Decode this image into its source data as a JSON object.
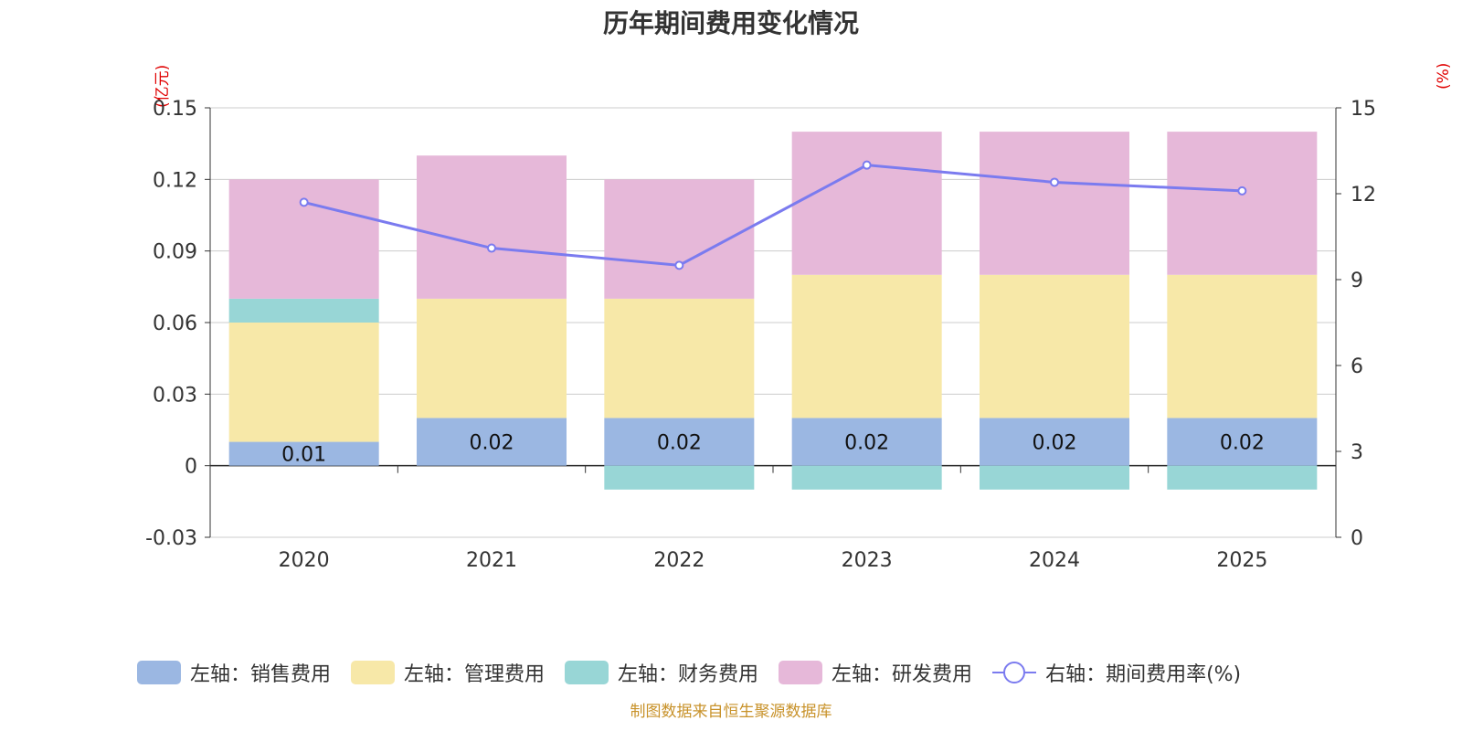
{
  "title": "历年期间费用变化情况",
  "colors": {
    "sales": "#9bb7e2",
    "admin": "#f7e8a8",
    "finance": "#98d6d6",
    "rnd": "#e6b8d9",
    "rate": "#7b7bef",
    "unit": "#e00000",
    "footer": "#c8922a"
  },
  "chart_data": {
    "type": "bar",
    "stacked": true,
    "title": "历年期间费用变化情况",
    "categories": [
      "2020",
      "2021",
      "2022",
      "2023",
      "2024",
      "2025"
    ],
    "series": [
      {
        "name": "左轴：销售费用",
        "axis": "left",
        "values": [
          0.01,
          0.02,
          0.02,
          0.02,
          0.02,
          0.02
        ],
        "labels": [
          "0.01",
          "0.02",
          "0.02",
          "0.02",
          "0.02",
          "0.02"
        ]
      },
      {
        "name": "左轴：管理费用",
        "axis": "left",
        "values": [
          0.05,
          0.05,
          0.05,
          0.06,
          0.06,
          0.06
        ]
      },
      {
        "name": "左轴：财务费用",
        "axis": "left",
        "values": [
          0.01,
          0.0,
          -0.01,
          -0.01,
          -0.01,
          -0.01
        ]
      },
      {
        "name": "左轴：研发费用",
        "axis": "left",
        "values": [
          0.05,
          0.06,
          0.05,
          0.06,
          0.06,
          0.06
        ]
      },
      {
        "name": "右轴：期间费用率(%)",
        "axis": "right",
        "type": "line",
        "values": [
          11.7,
          10.1,
          9.5,
          13.0,
          12.4,
          12.1
        ]
      }
    ],
    "y_left": {
      "unit": "(亿元)",
      "range": [
        -0.03,
        0.15
      ],
      "ticks": [
        "-0.03",
        "0",
        "0.03",
        "0.06",
        "0.09",
        "0.12",
        "0.15"
      ]
    },
    "y_right": {
      "unit": "(%)",
      "range": [
        0,
        15
      ],
      "ticks": [
        "0",
        "3",
        "6",
        "9",
        "12",
        "15"
      ]
    },
    "legend_position": "bottom",
    "grid": true
  },
  "footer": "制图数据来自恒生聚源数据库"
}
